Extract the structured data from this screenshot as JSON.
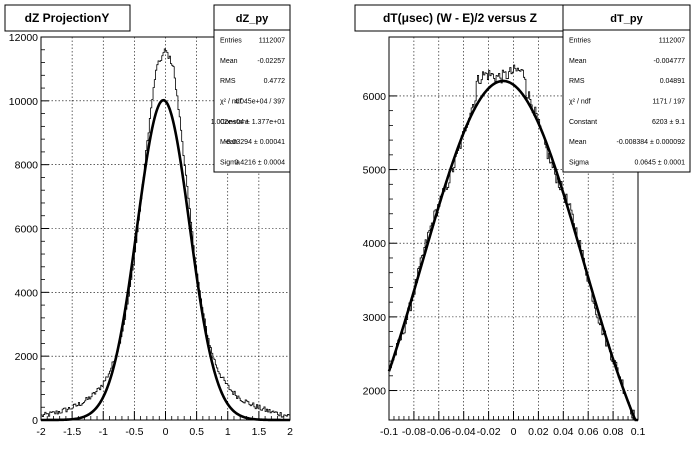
{
  "chart_data": [
    {
      "type": "line",
      "title": "dZ ProjectionY",
      "xlim": [
        -2,
        2
      ],
      "ylim": [
        0,
        12000
      ],
      "x_ticks": [
        -2,
        -1.5,
        -1,
        -0.5,
        0,
        0.5,
        1,
        1.5,
        2
      ],
      "y_ticks": [
        0,
        2000,
        4000,
        6000,
        8000,
        10000,
        12000
      ],
      "grid": true,
      "histogram": {
        "peak": 11600,
        "center": 0.0,
        "width_core": 0.3,
        "tail_frac": 0.06,
        "tail_width": 0.9
      },
      "fit": {
        "model": "gaus",
        "constant": 10020,
        "mean": -0.03294,
        "sigma": 0.4216
      },
      "stats": {
        "name": "dZ_py",
        "rows": [
          {
            "key": "Entries",
            "value": "1112007"
          },
          {
            "key": "Mean",
            "value": "-0.02257"
          },
          {
            "key": "RMS",
            "value": "0.4772"
          },
          {
            "key": "χ² / ndf",
            "value": "4.045e+04 / 397"
          },
          {
            "key": "Constant",
            "value": "1.002e+04 ± 1.377e+01"
          },
          {
            "key": "Mean",
            "value": "-0.03294 ± 0.00041"
          },
          {
            "key": "Sigma",
            "value": "0.4216 ± 0.0004"
          }
        ]
      }
    },
    {
      "type": "line",
      "title": "dT(μsec) (W - E)/2 versus Z",
      "xlim": [
        -0.1,
        0.1
      ],
      "ylim": [
        1600,
        6800
      ],
      "x_ticks": [
        -0.1,
        -0.08,
        -0.06,
        -0.04,
        -0.02,
        0,
        0.02,
        0.04,
        0.06,
        0.08,
        0.1
      ],
      "x_tick_labels": [
        "-0.1",
        "-0.08",
        "-0.06",
        "-0.04",
        "-0.02",
        "0",
        "0.02",
        "0.04",
        "0.06",
        "0.08",
        "0.1"
      ],
      "y_ticks": [
        2000,
        3000,
        4000,
        5000,
        6000
      ],
      "grid": true,
      "histogram": {
        "peak": 6450
      },
      "fit": {
        "model": "gaus",
        "constant": 6203,
        "mean": -0.008384,
        "sigma": 0.0645
      },
      "stats": {
        "name": "dT_py",
        "rows": [
          {
            "key": "Entries",
            "value": "1112007"
          },
          {
            "key": "Mean",
            "value": "-0.004777"
          },
          {
            "key": "RMS",
            "value": "0.04891"
          },
          {
            "key": "χ² / ndf",
            "value": "1171 / 197"
          },
          {
            "key": "Constant",
            "value": "6203 ± 9.1"
          },
          {
            "key": "Mean",
            "value": "-0.008384 ± 0.000092"
          },
          {
            "key": "Sigma",
            "value": "0.0645 ± 0.0001"
          }
        ]
      }
    }
  ]
}
